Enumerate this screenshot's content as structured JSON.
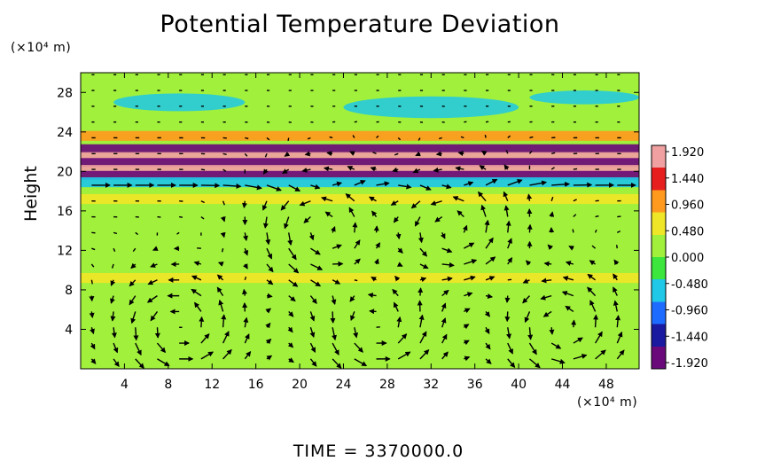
{
  "chart_data": {
    "type": "heatmap",
    "title": "Potential Temperature Deviation",
    "ylabel": "Height",
    "x_unit": "(×10⁴ m)",
    "y_unit": "(×10⁴ m)",
    "x_ticks": [
      4,
      8,
      12,
      16,
      20,
      24,
      28,
      32,
      36,
      40,
      44,
      48
    ],
    "y_ticks": [
      4,
      8,
      12,
      16,
      20,
      24,
      28
    ],
    "xlim": [
      0,
      51
    ],
    "ylim": [
      0,
      30
    ],
    "colorbar": {
      "ticks": [
        "1.920",
        "1.440",
        "0.960",
        "0.480",
        "0.000",
        "-0.480",
        "-0.960",
        "-1.440",
        "-1.920"
      ],
      "range": [
        -1.92,
        1.92
      ],
      "colors": [
        "#6a0a7a",
        "#1a1aa0",
        "#1e6cff",
        "#1ec8e6",
        "#3ce63c",
        "#a0f03c",
        "#f0e628",
        "#ff9a1e",
        "#e61e1e",
        "#f0a0a0"
      ]
    },
    "bands": [
      {
        "y": 22.3,
        "value": -1.9
      },
      {
        "y": 21.5,
        "value": 1.9
      },
      {
        "y": 20.9,
        "value": -1.9
      },
      {
        "y": 20.2,
        "value": 1.9
      },
      {
        "y": 19.6,
        "value": -1.7
      },
      {
        "y": 18.9,
        "value": -0.5
      },
      {
        "y": 23.6,
        "value": 0.9
      },
      {
        "y": 17.2,
        "value": 0.6
      },
      {
        "y": 9.2,
        "value": 0.4
      }
    ],
    "vortices": [
      {
        "x": 9,
        "y": 4
      },
      {
        "x": 27,
        "y": 4
      },
      {
        "x": 44,
        "y": 4
      },
      {
        "x": 22,
        "y": 14
      },
      {
        "x": 34,
        "y": 14
      }
    ],
    "time_label": "TIME  =  3370000.0"
  }
}
